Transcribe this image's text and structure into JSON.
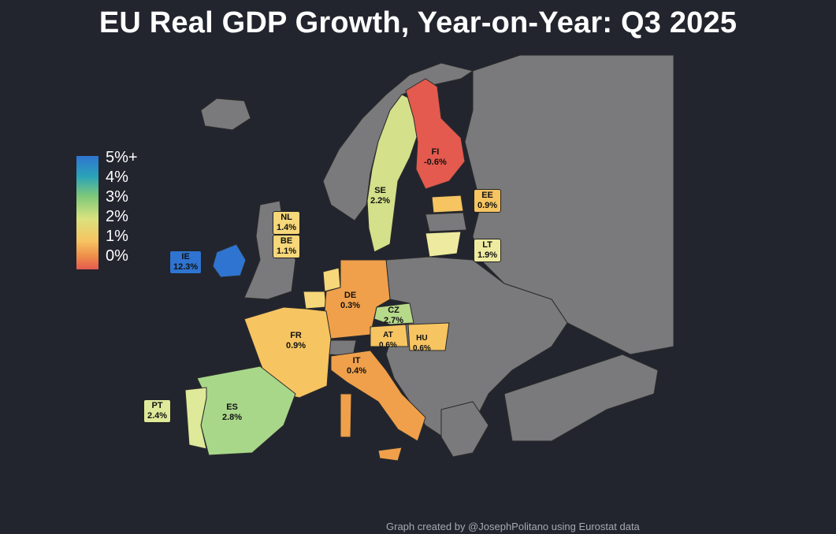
{
  "title": "EU Real GDP Growth, Year-on-Year: Q3 2025",
  "legend": {
    "ticks": [
      "5%+",
      "4%",
      "3%",
      "2%",
      "1%",
      "0%"
    ],
    "colors": [
      "#e45a4e",
      "#f0a04b",
      "#f6d77a",
      "#cde28a",
      "#7cc77a",
      "#2f74d0"
    ]
  },
  "countries": [
    {
      "code": "FI",
      "value": "-0.6%"
    },
    {
      "code": "SE",
      "value": "2.2%"
    },
    {
      "code": "EE",
      "value": "0.9%"
    },
    {
      "code": "LT",
      "value": "1.9%"
    },
    {
      "code": "NL",
      "value": "1.4%"
    },
    {
      "code": "BE",
      "value": "1.1%"
    },
    {
      "code": "IE",
      "value": "12.3%"
    },
    {
      "code": "DE",
      "value": "0.3%"
    },
    {
      "code": "CZ",
      "value": "2.7%"
    },
    {
      "code": "FR",
      "value": "0.9%"
    },
    {
      "code": "AT",
      "value": "0.6%"
    },
    {
      "code": "HU",
      "value": "0.6%"
    },
    {
      "code": "IT",
      "value": "0.4%"
    },
    {
      "code": "PT",
      "value": "2.4%"
    },
    {
      "code": "ES",
      "value": "2.8%"
    }
  ],
  "credit": "Graph created by @JosephPolitano using Eurostat data"
}
